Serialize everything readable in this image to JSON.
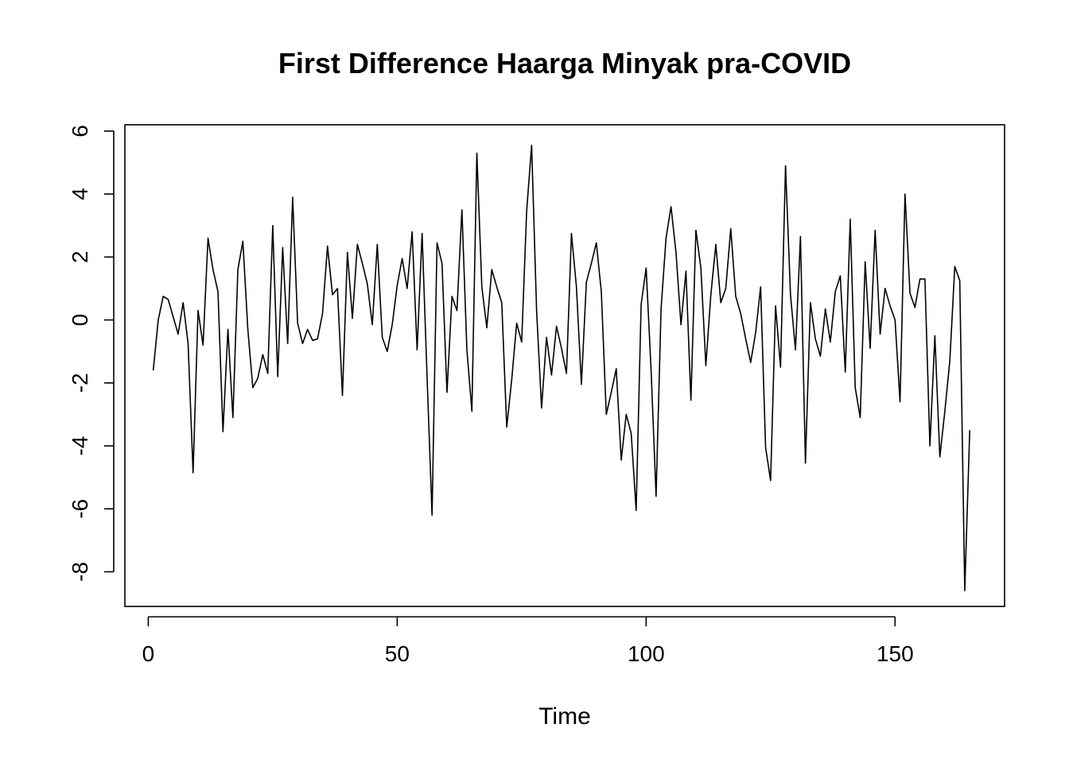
{
  "chart_data": {
    "type": "line",
    "title": "First Difference Haarga Minyak pra-COVID",
    "xlabel": "Time",
    "ylabel": "",
    "xlim": [
      -4.7,
      172
    ],
    "ylim": [
      -9.1,
      6.2
    ],
    "xticks": [
      0,
      50,
      100,
      150
    ],
    "yticks": [
      6,
      4,
      2,
      0,
      -2,
      -4,
      -6,
      -8
    ],
    "grid": false,
    "x_start": 1,
    "series": [
      {
        "values": [
          -1.6,
          0.0,
          0.75,
          0.65,
          0.1,
          -0.45,
          0.55,
          -0.75,
          -4.85,
          0.3,
          -0.8,
          2.6,
          1.6,
          0.9,
          -3.55,
          -0.3,
          -3.1,
          1.6,
          2.5,
          -0.3,
          -2.15,
          -1.85,
          -1.1,
          -1.7,
          3.0,
          -1.8,
          2.3,
          -0.75,
          3.9,
          -0.1,
          -0.75,
          -0.3,
          -0.65,
          -0.6,
          0.2,
          2.35,
          0.8,
          1.0,
          -2.4,
          2.15,
          0.05,
          2.4,
          1.8,
          1.15,
          -0.15,
          2.4,
          -0.55,
          -1.0,
          -0.15,
          1.1,
          1.95,
          1.0,
          2.8,
          -0.95,
          2.75,
          -1.8,
          -6.2,
          2.45,
          1.8,
          -2.3,
          0.75,
          0.3,
          3.5,
          -0.95,
          -2.9,
          5.3,
          1.05,
          -0.25,
          1.6,
          1.05,
          0.55,
          -3.4,
          -1.9,
          -0.1,
          -0.7,
          3.45,
          5.55,
          0.3,
          -2.8,
          -0.55,
          -1.75,
          -0.2,
          -0.9,
          -1.7,
          2.75,
          1.05,
          -2.05,
          1.2,
          1.8,
          2.45,
          0.9,
          -3.0,
          -2.3,
          -1.55,
          -4.45,
          -3.0,
          -3.6,
          -6.05,
          0.5,
          1.65,
          -1.6,
          -5.6,
          0.35,
          2.6,
          3.6,
          2.15,
          -0.15,
          1.55,
          -2.55,
          2.85,
          1.65,
          -1.45,
          0.8,
          2.4,
          0.55,
          1.0,
          2.9,
          0.75,
          0.2,
          -0.6,
          -1.35,
          -0.4,
          1.05,
          -4.05,
          -5.1,
          0.45,
          -1.5,
          4.9,
          0.8,
          -0.95,
          2.65,
          -4.55,
          0.55,
          -0.6,
          -1.15,
          0.35,
          -0.7,
          0.9,
          1.4,
          -1.65,
          3.2,
          -2.15,
          -3.1,
          1.85,
          -0.9,
          2.85,
          -0.45,
          1.0,
          0.45,
          0.0,
          -2.6,
          4.0,
          0.85,
          0.4,
          1.3,
          1.3,
          -4.0,
          -0.5,
          -4.35,
          -2.9,
          -1.3,
          1.7,
          1.25,
          -8.6,
          -3.5
        ]
      }
    ]
  }
}
